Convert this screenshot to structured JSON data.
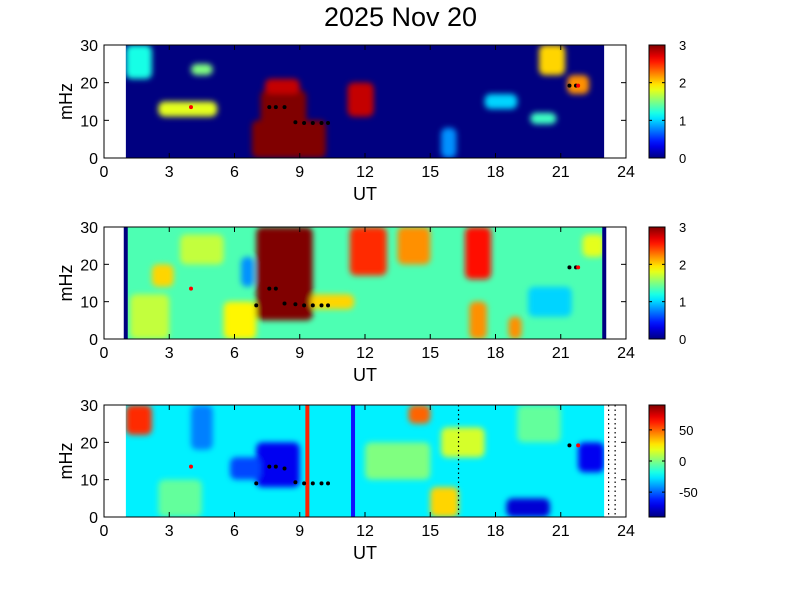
{
  "title": "2025 Nov 20",
  "colors": {
    "low": "#00008f",
    "mid": "#7fff7f",
    "high": "#800000",
    "marker_black": "#000000",
    "marker_red": "#ff0000",
    "vline_red": "#ff2000",
    "vline_blue": "#1010ff"
  },
  "chart_data": [
    {
      "type": "heatmap",
      "xlabel": "UT",
      "ylabel": "mHz",
      "xlim": [
        0,
        24
      ],
      "ylim": [
        0,
        30
      ],
      "xticks": [
        0,
        3,
        6,
        9,
        12,
        15,
        18,
        21,
        24
      ],
      "yticks": [
        0,
        10,
        20,
        30
      ],
      "data_x_range": [
        1,
        23
      ],
      "colorbar": {
        "range": [
          0,
          3
        ],
        "ticks": [
          0,
          1,
          2,
          3
        ]
      },
      "background_value": 0,
      "features": [
        {
          "x": [
            7.2,
            9.3
          ],
          "y": [
            6,
            18
          ],
          "value": 3
        },
        {
          "x": [
            7.4,
            9.0
          ],
          "y": [
            17,
            21
          ],
          "value": 2.8
        },
        {
          "x": [
            6.8,
            10.2
          ],
          "y": [
            0,
            10
          ],
          "value": 3
        },
        {
          "x": [
            11.2,
            12.4
          ],
          "y": [
            11,
            20
          ],
          "value": 2.8
        },
        {
          "x": [
            2.5,
            5.2
          ],
          "y": [
            11,
            15
          ],
          "value": 1.8
        },
        {
          "x": [
            20.0,
            21.2
          ],
          "y": [
            22,
            30
          ],
          "value": 2.0
        },
        {
          "x": [
            21.3,
            22.3
          ],
          "y": [
            17,
            22
          ],
          "value": 2.2
        },
        {
          "x": [
            1.0,
            2.2
          ],
          "y": [
            21,
            30
          ],
          "value": 1.2
        },
        {
          "x": [
            4.0,
            5.0
          ],
          "y": [
            22,
            25
          ],
          "value": 1.5
        },
        {
          "x": [
            19.6,
            20.8
          ],
          "y": [
            9,
            12
          ],
          "value": 1.3
        },
        {
          "x": [
            17.5,
            19.0
          ],
          "y": [
            13,
            17
          ],
          "value": 1.0
        },
        {
          "x": [
            15.5,
            16.2
          ],
          "y": [
            0,
            8
          ],
          "value": 0.8
        }
      ],
      "markers_black": [
        [
          7.6,
          13.5
        ],
        [
          7.9,
          13.5
        ],
        [
          8.3,
          13.5
        ],
        [
          8.8,
          9.5
        ],
        [
          9.2,
          9.3
        ],
        [
          9.6,
          9.3
        ],
        [
          10.0,
          9.3
        ],
        [
          10.3,
          9.3
        ],
        [
          21.4,
          19.2
        ],
        [
          21.7,
          19.2
        ]
      ],
      "markers_red": [
        [
          4.0,
          13.5
        ],
        [
          21.8,
          19.2
        ]
      ]
    },
    {
      "type": "heatmap",
      "xlabel": "UT",
      "ylabel": "mHz",
      "xlim": [
        0,
        24
      ],
      "ylim": [
        0,
        30
      ],
      "xticks": [
        0,
        3,
        6,
        9,
        12,
        15,
        18,
        21,
        24
      ],
      "yticks": [
        0,
        10,
        20,
        30
      ],
      "data_x_range": [
        1,
        23
      ],
      "colorbar": {
        "range": [
          0,
          3
        ],
        "ticks": [
          0,
          1,
          2,
          3
        ]
      },
      "background_value": 1.35,
      "edge_lines_value": 0,
      "features": [
        {
          "x": [
            7.0,
            9.6
          ],
          "y": [
            5,
            30
          ],
          "value": 3
        },
        {
          "x": [
            11.3,
            13.0
          ],
          "y": [
            17,
            30
          ],
          "value": 2.5
        },
        {
          "x": [
            13.5,
            15.0
          ],
          "y": [
            20,
            30
          ],
          "value": 2.2
        },
        {
          "x": [
            16.6,
            17.8
          ],
          "y": [
            16,
            30
          ],
          "value": 2.6
        },
        {
          "x": [
            16.8,
            17.6
          ],
          "y": [
            0,
            10
          ],
          "value": 2.2
        },
        {
          "x": [
            18.6,
            19.2
          ],
          "y": [
            0,
            6
          ],
          "value": 2.2
        },
        {
          "x": [
            2.2,
            3.2
          ],
          "y": [
            14,
            20
          ],
          "value": 2.0
        },
        {
          "x": [
            9.5,
            11.5
          ],
          "y": [
            8,
            12
          ],
          "value": 2.0
        },
        {
          "x": [
            6.3,
            6.9
          ],
          "y": [
            14,
            22
          ],
          "value": 0.8
        },
        {
          "x": [
            19.5,
            21.5
          ],
          "y": [
            6,
            14
          ],
          "value": 1.0
        },
        {
          "x": [
            3.5,
            5.5
          ],
          "y": [
            20,
            28
          ],
          "value": 1.7
        },
        {
          "x": [
            1.2,
            3.0
          ],
          "y": [
            0,
            12
          ],
          "value": 1.7
        },
        {
          "x": [
            5.5,
            7.0
          ],
          "y": [
            0,
            10
          ],
          "value": 1.9
        },
        {
          "x": [
            22.0,
            23.0
          ],
          "y": [
            22,
            28
          ],
          "value": 1.8
        }
      ],
      "markers_black": [
        [
          7.0,
          9.0
        ],
        [
          7.6,
          13.5
        ],
        [
          7.9,
          13.5
        ],
        [
          8.3,
          9.5
        ],
        [
          8.8,
          9.3
        ],
        [
          9.2,
          9.0
        ],
        [
          9.6,
          9.0
        ],
        [
          10.0,
          9.0
        ],
        [
          10.3,
          9.0
        ],
        [
          21.4,
          19.2
        ],
        [
          21.7,
          19.2
        ]
      ],
      "markers_red": [
        [
          4.0,
          13.5
        ],
        [
          21.8,
          19.2
        ]
      ]
    },
    {
      "type": "heatmap",
      "xlabel": "UT",
      "ylabel": "mHz",
      "xlim": [
        0,
        24
      ],
      "ylim": [
        0,
        30
      ],
      "xticks": [
        0,
        3,
        6,
        9,
        12,
        15,
        18,
        21,
        24
      ],
      "yticks": [
        0,
        10,
        20,
        30
      ],
      "data_x_range": [
        1,
        23
      ],
      "colorbar": {
        "range": [
          -90,
          90
        ],
        "ticks": [
          -50,
          0,
          50
        ]
      },
      "background_value": -25,
      "features": [
        {
          "x": [
            1.0,
            2.2
          ],
          "y": [
            22,
            30
          ],
          "value": 60
        },
        {
          "x": [
            14.0,
            15.0
          ],
          "y": [
            25,
            30
          ],
          "value": 50
        },
        {
          "x": [
            15.0,
            16.3
          ],
          "y": [
            0,
            8
          ],
          "value": 30
        },
        {
          "x": [
            7.0,
            9.0
          ],
          "y": [
            8,
            20
          ],
          "value": -70
        },
        {
          "x": [
            5.8,
            7.2
          ],
          "y": [
            10,
            16
          ],
          "value": -55
        },
        {
          "x": [
            18.5,
            20.5
          ],
          "y": [
            0,
            5
          ],
          "value": -75
        },
        {
          "x": [
            21.8,
            23.0
          ],
          "y": [
            12,
            20
          ],
          "value": -70
        },
        {
          "x": [
            4.0,
            5.0
          ],
          "y": [
            18,
            30
          ],
          "value": -45
        },
        {
          "x": [
            12.0,
            15.0
          ],
          "y": [
            10,
            20
          ],
          "value": 0
        },
        {
          "x": [
            15.5,
            17.5
          ],
          "y": [
            16,
            24
          ],
          "value": 15
        },
        {
          "x": [
            2.5,
            4.5
          ],
          "y": [
            0,
            10
          ],
          "value": -5
        },
        {
          "x": [
            19.0,
            21.0
          ],
          "y": [
            20,
            30
          ],
          "value": -5
        }
      ],
      "vertical_lines": [
        {
          "x": 9.35,
          "color": "red"
        },
        {
          "x": 11.45,
          "color": "blue"
        }
      ],
      "dotted_lines": [
        16.3,
        23.2,
        23.5
      ],
      "markers_black": [
        [
          7.0,
          9.0
        ],
        [
          7.6,
          13.5
        ],
        [
          7.9,
          13.5
        ],
        [
          8.3,
          13.0
        ],
        [
          8.8,
          9.3
        ],
        [
          9.2,
          9.0
        ],
        [
          9.6,
          9.0
        ],
        [
          10.0,
          9.0
        ],
        [
          10.3,
          9.0
        ],
        [
          21.4,
          19.2
        ]
      ],
      "markers_red": [
        [
          4.0,
          13.5
        ],
        [
          21.8,
          19.2
        ]
      ]
    }
  ]
}
